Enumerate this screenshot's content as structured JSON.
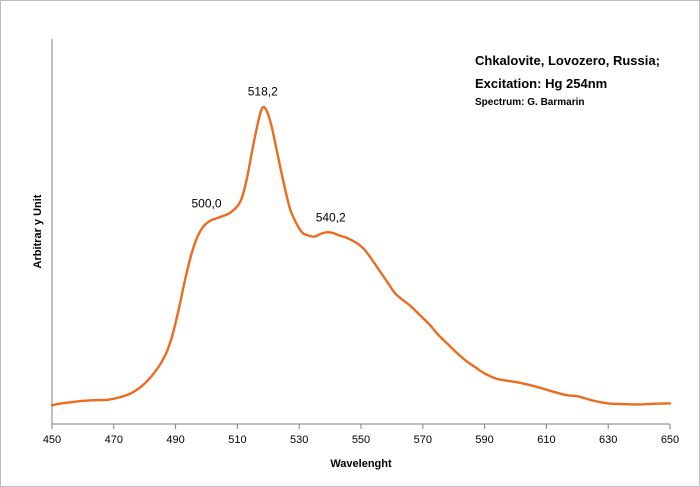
{
  "colors": {
    "series": "#ed6b1f",
    "axis": "#7f7f7f"
  },
  "chart_data": {
    "type": "line",
    "title": "",
    "xlabel": "Wavelenght",
    "ylabel": "Arbitrar y Unit",
    "xlim": [
      450,
      650
    ],
    "ylim": [
      0,
      1
    ],
    "grid": false,
    "legend": "none",
    "x_ticks": [
      "450",
      "470",
      "490",
      "510",
      "530",
      "550",
      "570",
      "590",
      "610",
      "630",
      "650"
    ],
    "annotations": {
      "line1": "Chkalovite, Lovozero, Russia;",
      "line2": "Excitation:  Hg 254nm",
      "line3": "Spectrum: G. Barmarin"
    },
    "peaks": [
      {
        "x": 500.0,
        "y": 0.52,
        "label": "500,0"
      },
      {
        "x": 518.2,
        "y": 0.83,
        "label": "518,2"
      },
      {
        "x": 540.2,
        "y": 0.48,
        "label": "540,2"
      }
    ],
    "series": [
      {
        "x": [
          450,
          453,
          456,
          460,
          464,
          468,
          472,
          476,
          480,
          484,
          487,
          489,
          491,
          493,
          495,
          497,
          499,
          501,
          503,
          505,
          508,
          511,
          513,
          515,
          517,
          518.2,
          519.5,
          521,
          523,
          525,
          527,
          529,
          531,
          533,
          535,
          537,
          539,
          541,
          543,
          545,
          547,
          549,
          551,
          553,
          555,
          557,
          559,
          561,
          563,
          566,
          569,
          572,
          575,
          578,
          581,
          584,
          587,
          590,
          594,
          598,
          602,
          606,
          610,
          614,
          617,
          620,
          625,
          630,
          635,
          640,
          645,
          650
        ],
        "y": [
          0.005,
          0.01,
          0.013,
          0.017,
          0.019,
          0.02,
          0.027,
          0.04,
          0.065,
          0.105,
          0.15,
          0.2,
          0.27,
          0.35,
          0.42,
          0.47,
          0.5,
          0.515,
          0.522,
          0.528,
          0.54,
          0.57,
          0.63,
          0.72,
          0.8,
          0.83,
          0.82,
          0.78,
          0.7,
          0.62,
          0.55,
          0.51,
          0.483,
          0.475,
          0.472,
          0.48,
          0.484,
          0.482,
          0.475,
          0.47,
          0.462,
          0.452,
          0.437,
          0.415,
          0.39,
          0.365,
          0.34,
          0.315,
          0.3,
          0.28,
          0.255,
          0.23,
          0.2,
          0.175,
          0.15,
          0.128,
          0.11,
          0.093,
          0.078,
          0.072,
          0.066,
          0.058,
          0.048,
          0.038,
          0.032,
          0.03,
          0.018,
          0.01,
          0.008,
          0.007,
          0.009,
          0.01
        ]
      }
    ]
  }
}
